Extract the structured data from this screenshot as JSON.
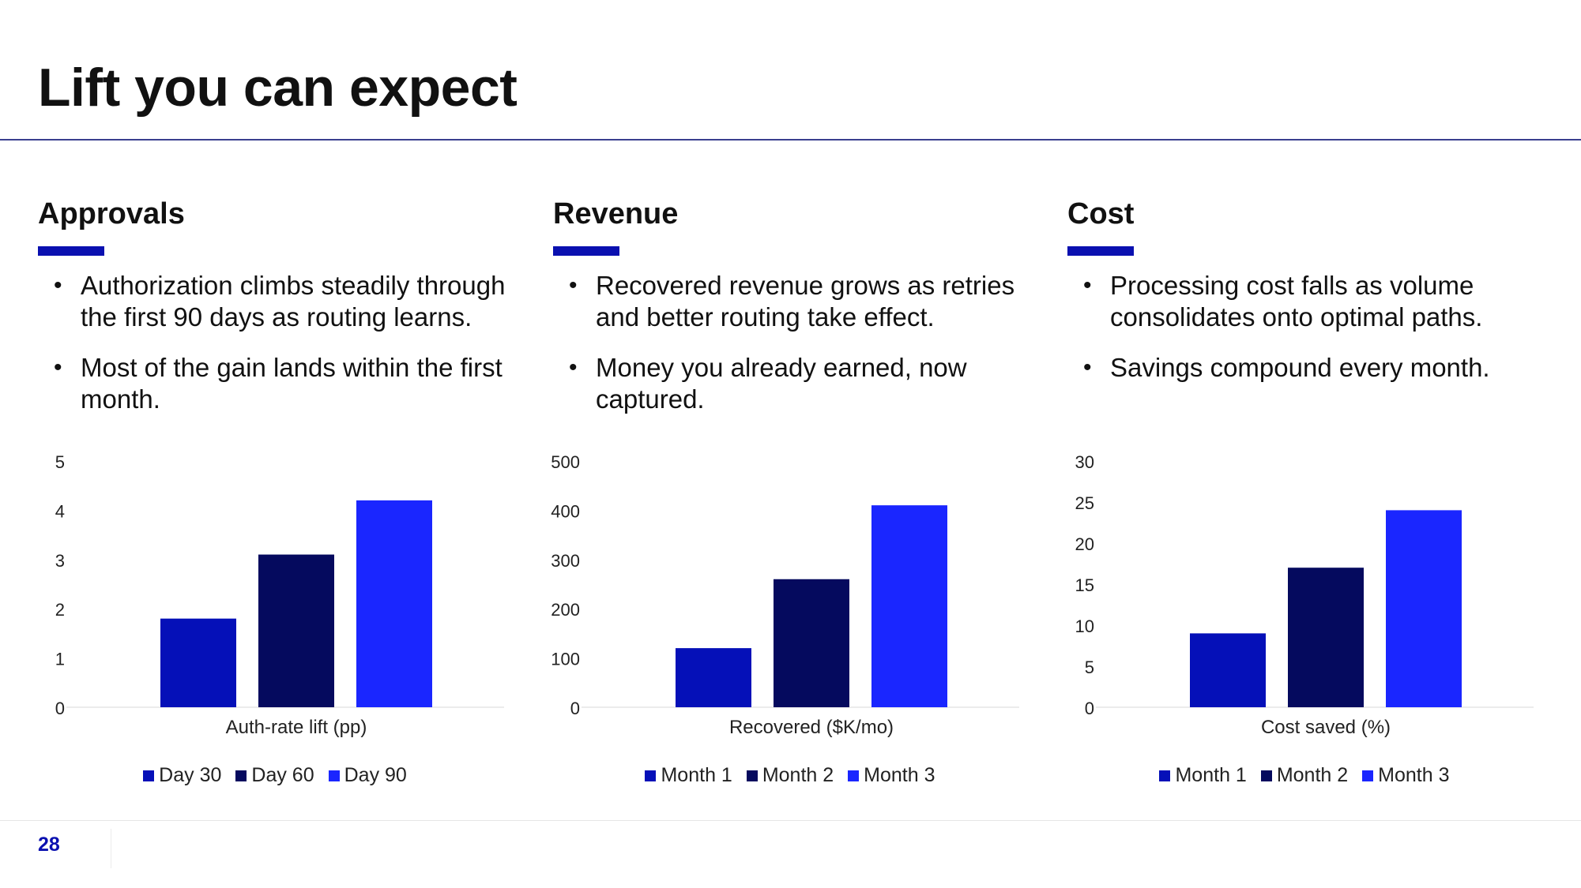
{
  "slide": {
    "title": "Lift you can expect",
    "page_number": "28"
  },
  "colors": {
    "accent": "#0a10b0",
    "series": [
      "#0510b8",
      "#050a5e",
      "#1a26ff"
    ],
    "rule": "#3a3f8f"
  },
  "panels": [
    {
      "heading": "Approvals",
      "bullets": [
        "Authorization climbs steadily through the first 90 days as routing learns.",
        "Most of the gain lands within the first month."
      ]
    },
    {
      "heading": "Revenue",
      "bullets": [
        "Recovered revenue grows as retries and better routing take effect.",
        "Money you already earned, now captured."
      ]
    },
    {
      "heading": "Cost",
      "bullets": [
        "Processing cost falls as volume consolidates onto optimal paths.",
        "Savings compound every month."
      ]
    }
  ],
  "chart_data": [
    {
      "type": "bar",
      "categories": [
        "Auth-rate lift (pp)"
      ],
      "series": [
        {
          "name": "Day 30",
          "values": [
            1.8
          ]
        },
        {
          "name": "Day 60",
          "values": [
            3.1
          ]
        },
        {
          "name": "Day 90",
          "values": [
            4.2
          ]
        }
      ],
      "ylim": [
        0,
        5
      ],
      "yticks": [
        "0",
        "1",
        "2",
        "3",
        "4",
        "5"
      ],
      "grid": false,
      "legend": "bottom"
    },
    {
      "type": "bar",
      "categories": [
        "Recovered ($K/mo)"
      ],
      "series": [
        {
          "name": "Month 1",
          "values": [
            120
          ]
        },
        {
          "name": "Month 2",
          "values": [
            260
          ]
        },
        {
          "name": "Month 3",
          "values": [
            410
          ]
        }
      ],
      "ylim": [
        0,
        500
      ],
      "yticks": [
        "0",
        "100",
        "200",
        "300",
        "400",
        "500"
      ],
      "grid": false,
      "legend": "bottom"
    },
    {
      "type": "bar",
      "categories": [
        "Cost saved (%)"
      ],
      "series": [
        {
          "name": "Month 1",
          "values": [
            9
          ]
        },
        {
          "name": "Month 2",
          "values": [
            17
          ]
        },
        {
          "name": "Month 3",
          "values": [
            24
          ]
        }
      ],
      "ylim": [
        0,
        30
      ],
      "yticks": [
        "0",
        "5",
        "10",
        "15",
        "20",
        "25",
        "30"
      ],
      "grid": false,
      "legend": "bottom"
    }
  ]
}
